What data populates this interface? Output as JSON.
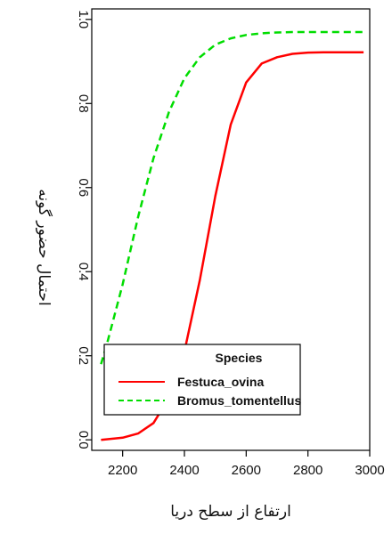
{
  "chart_data": {
    "type": "line",
    "xlabel": "ارتفاع از سطح دریا",
    "ylabel": "احتمال حضور گونه",
    "xlim": [
      2100,
      3000
    ],
    "ylim": [
      -0.025,
      1.025
    ],
    "x_ticks": [
      2200,
      2400,
      2600,
      2800,
      3000
    ],
    "y_ticks": [
      0.0,
      0.2,
      0.4,
      0.6,
      0.8,
      1.0
    ],
    "grid": false,
    "legend": {
      "title": "Species",
      "placement": "bottom-left"
    },
    "series": [
      {
        "name": "Festuca_ovina",
        "color": "#ff0000",
        "style": "solid",
        "x": [
          2130,
          2200,
          2250,
          2300,
          2350,
          2400,
          2450,
          2500,
          2550,
          2600,
          2650,
          2700,
          2750,
          2800,
          2850,
          2900,
          2950,
          2980
        ],
        "y": [
          0.0,
          0.005,
          0.015,
          0.04,
          0.1,
          0.21,
          0.38,
          0.58,
          0.75,
          0.85,
          0.895,
          0.91,
          0.918,
          0.921,
          0.922,
          0.922,
          0.922,
          0.922
        ]
      },
      {
        "name": "Bromus_tomentellus",
        "color": "#00dd00",
        "style": "dashed",
        "x": [
          2130,
          2150,
          2200,
          2250,
          2300,
          2350,
          2400,
          2450,
          2500,
          2550,
          2600,
          2650,
          2700,
          2750,
          2800,
          2850,
          2900,
          2950,
          2980
        ],
        "y": [
          0.18,
          0.23,
          0.37,
          0.53,
          0.67,
          0.78,
          0.86,
          0.91,
          0.94,
          0.955,
          0.963,
          0.967,
          0.969,
          0.97,
          0.97,
          0.97,
          0.97,
          0.97,
          0.97
        ]
      }
    ]
  }
}
